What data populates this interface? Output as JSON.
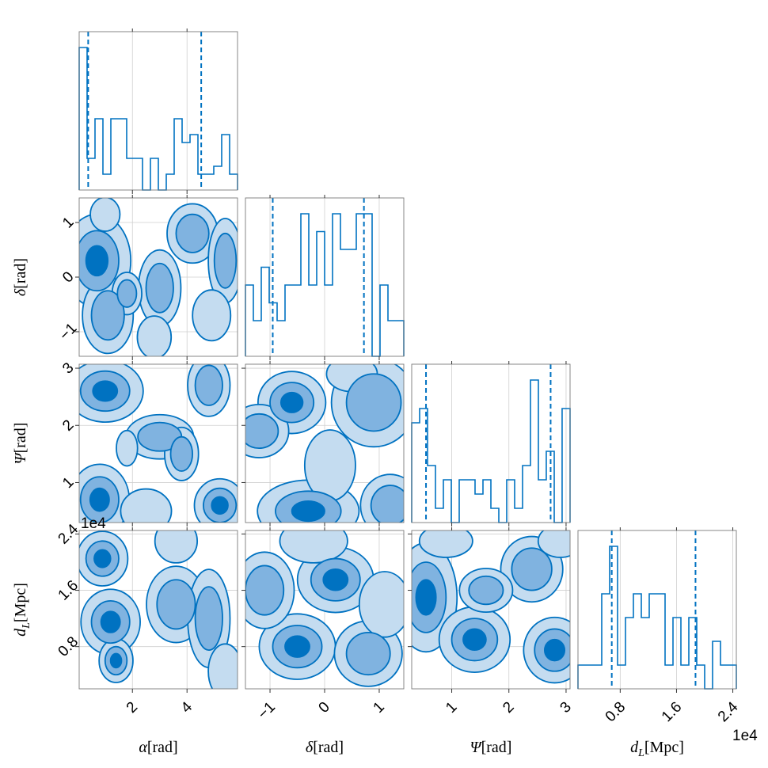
{
  "colors": {
    "line": "#0072C1",
    "level_low": "#C4DCF0",
    "level_mid": "#80B3E0",
    "level_high": "#0072C1"
  },
  "chart_data": {
    "type": "corner",
    "parameters": [
      {
        "key": "alpha",
        "label_symbol": "α",
        "label_unit": "[rad]",
        "range": [
          0.05,
          5.85
        ],
        "ticks": [
          2,
          4
        ],
        "tick_labels": [
          "2",
          "4"
        ],
        "quantiles": [
          0.38,
          4.52
        ]
      },
      {
        "key": "delta",
        "label_symbol": "δ",
        "label_unit": "[rad]",
        "range": [
          -1.45,
          1.45
        ],
        "ticks": [
          -1,
          0,
          1
        ],
        "tick_labels": [
          "−1",
          "0",
          "1"
        ],
        "quantiles": [
          -0.95,
          0.72
        ]
      },
      {
        "key": "psi",
        "label_symbol": "Ψ",
        "label_unit": "[rad]",
        "range": [
          0.3,
          3.07
        ],
        "ticks": [
          1,
          2,
          3
        ],
        "tick_labels": [
          "1",
          "2",
          "3"
        ],
        "quantiles": [
          0.55,
          2.73
        ]
      },
      {
        "key": "dL",
        "label_symbol": "d",
        "label_sub": "L",
        "label_unit": "[Mpc]",
        "range": [
          0.2,
          2.45
        ],
        "ticks": [
          0.8,
          1.6,
          2.4
        ],
        "tick_labels": [
          "0.8",
          "1.6",
          "2.4"
        ],
        "offset_label": "1e4",
        "quantiles": [
          0.68,
          1.87
        ]
      }
    ],
    "histograms": [
      {
        "param": "alpha",
        "edges": [
          0.05,
          0.34,
          0.63,
          0.92,
          1.21,
          1.5,
          1.79,
          2.08,
          2.37,
          2.66,
          2.95,
          3.24,
          3.53,
          3.82,
          4.11,
          4.4,
          4.69,
          4.98,
          5.27,
          5.56,
          5.85
        ],
        "counts": [
          18,
          4,
          9,
          2,
          9,
          9,
          4,
          4,
          0,
          4,
          0,
          2,
          9,
          6,
          7,
          2,
          2,
          3,
          7,
          2
        ]
      },
      {
        "param": "delta",
        "edges": [
          -1.45,
          -1.305,
          -1.16,
          -1.015,
          -0.87,
          -0.725,
          -0.58,
          -0.435,
          -0.29,
          -0.145,
          0,
          0.145,
          0.29,
          0.435,
          0.58,
          0.725,
          0.87,
          1.015,
          1.16,
          1.305,
          1.45
        ],
        "counts": [
          4,
          2,
          5,
          3,
          2,
          4,
          4,
          8,
          4,
          7,
          4,
          8,
          6,
          6,
          8,
          8,
          0,
          4,
          2,
          2
        ]
      },
      {
        "param": "psi",
        "edges": [
          0.3,
          0.4385,
          0.577,
          0.7155,
          0.854,
          0.9925,
          1.131,
          1.2695,
          1.408,
          1.5465,
          1.685,
          1.8235,
          1.962,
          2.1005,
          2.239,
          2.3775,
          2.516,
          2.654,
          2.793,
          2.931,
          3.07
        ],
        "counts": [
          7,
          8,
          4,
          1,
          3,
          0,
          3,
          3,
          2,
          3,
          1,
          0,
          3,
          1,
          4,
          10,
          3,
          5,
          0,
          8
        ]
      },
      {
        "param": "dL",
        "edges": [
          0.2,
          0.3125,
          0.425,
          0.5375,
          0.65,
          0.7625,
          0.875,
          0.9875,
          1.1,
          1.2125,
          1.325,
          1.4375,
          1.55,
          1.6625,
          1.775,
          1.8875,
          2.0,
          2.1125,
          2.225,
          2.3375,
          2.45
        ],
        "counts": [
          1,
          1,
          1,
          4,
          6,
          1,
          3,
          4,
          3,
          4,
          4,
          1,
          3,
          1,
          3,
          1,
          0,
          2,
          1,
          1
        ]
      }
    ],
    "contour_levels": [
      "level_low",
      "level_mid",
      "level_high"
    ],
    "pairs": [
      {
        "x": "alpha",
        "y": "delta",
        "blobs": [
          [
            0.7,
            0.3,
            0.8,
            0.55,
            3
          ],
          [
            1.1,
            -0.7,
            0.6,
            0.45,
            2
          ],
          [
            2.1,
            0.4,
            0.35,
            0.25,
            -1
          ],
          [
            3.0,
            -0.2,
            0.5,
            0.45,
            2
          ],
          [
            4.2,
            0.8,
            0.6,
            0.35,
            2
          ],
          [
            5.4,
            0.3,
            0.4,
            0.5,
            2
          ],
          [
            1.0,
            1.15,
            0.35,
            0.2,
            1
          ],
          [
            2.8,
            -1.1,
            0.4,
            0.25,
            1
          ],
          [
            4.9,
            -0.7,
            0.45,
            0.3,
            1
          ],
          [
            1.8,
            -0.3,
            0.35,
            0.25,
            2
          ]
        ]
      },
      {
        "x": "alpha",
        "y": "psi",
        "blobs": [
          [
            1.0,
            2.6,
            0.9,
            0.35,
            3
          ],
          [
            0.8,
            0.7,
            0.7,
            0.4,
            3
          ],
          [
            3.0,
            1.8,
            0.8,
            0.25,
            2
          ],
          [
            3.8,
            1.5,
            0.4,
            0.3,
            2
          ],
          [
            5.2,
            0.6,
            0.6,
            0.3,
            3
          ],
          [
            4.8,
            2.7,
            0.5,
            0.35,
            2
          ],
          [
            2.5,
            0.5,
            0.6,
            0.25,
            1
          ],
          [
            1.8,
            1.6,
            0.25,
            0.2,
            1
          ]
        ]
      },
      {
        "x": "delta",
        "y": "psi",
        "blobs": [
          [
            -0.3,
            0.5,
            0.6,
            0.35,
            3
          ],
          [
            -0.6,
            2.4,
            0.4,
            0.35,
            3
          ],
          [
            -1.2,
            1.9,
            0.35,
            0.3,
            2
          ],
          [
            0.9,
            2.4,
            0.5,
            0.5,
            2
          ],
          [
            1.2,
            0.6,
            0.35,
            0.35,
            2
          ],
          [
            0.1,
            1.3,
            0.3,
            0.4,
            1
          ],
          [
            0.5,
            2.9,
            0.3,
            0.2,
            1
          ]
        ]
      },
      {
        "x": "alpha",
        "y": "dL",
        "blobs": [
          [
            0.9,
            2.05,
            0.6,
            0.25,
            3
          ],
          [
            1.2,
            1.15,
            0.7,
            0.3,
            3
          ],
          [
            1.4,
            0.6,
            0.4,
            0.2,
            3
          ],
          [
            3.6,
            1.4,
            0.7,
            0.35,
            2
          ],
          [
            4.8,
            1.2,
            0.5,
            0.45,
            2
          ],
          [
            3.6,
            2.3,
            0.5,
            0.2,
            1
          ],
          [
            5.4,
            0.45,
            0.4,
            0.25,
            1
          ]
        ]
      },
      {
        "x": "delta",
        "y": "dL",
        "blobs": [
          [
            0.2,
            1.75,
            0.45,
            0.3,
            3
          ],
          [
            -0.5,
            0.8,
            0.45,
            0.3,
            3
          ],
          [
            0.8,
            0.7,
            0.4,
            0.3,
            2
          ],
          [
            -1.1,
            1.6,
            0.35,
            0.35,
            2
          ],
          [
            1.1,
            1.4,
            0.3,
            0.3,
            1
          ],
          [
            -0.2,
            2.3,
            0.4,
            0.2,
            1
          ]
        ]
      },
      {
        "x": "psi",
        "y": "dL",
        "blobs": [
          [
            0.55,
            1.5,
            0.35,
            0.5,
            3
          ],
          [
            1.4,
            0.9,
            0.4,
            0.3,
            3
          ],
          [
            2.8,
            0.75,
            0.35,
            0.3,
            3
          ],
          [
            2.4,
            1.9,
            0.35,
            0.3,
            2
          ],
          [
            1.6,
            1.6,
            0.3,
            0.2,
            2
          ],
          [
            0.9,
            2.3,
            0.3,
            0.15,
            1
          ],
          [
            2.9,
            2.3,
            0.25,
            0.15,
            1
          ]
        ]
      }
    ]
  }
}
